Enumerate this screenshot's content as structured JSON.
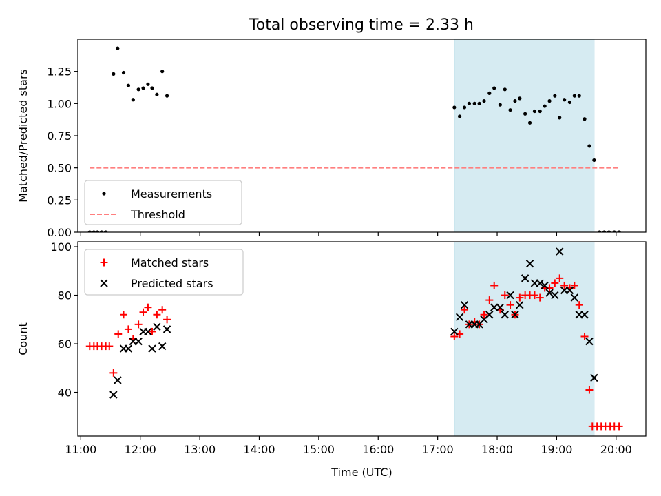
{
  "title": "Total observing time = 2.33 h",
  "chart_data": [
    {
      "type": "scatter",
      "panel": "top",
      "ylabel": "Matched/Predicted stars",
      "ylim": [
        0,
        1.5
      ],
      "yticks": [
        0.0,
        0.25,
        0.5,
        0.75,
        1.0,
        1.25
      ],
      "ytick_labels": [
        "0.00",
        "0.25",
        "0.50",
        "0.75",
        "1.00",
        "1.25"
      ],
      "xlim": [
        10.95,
        20.5
      ],
      "legend": {
        "placement": "lower-left",
        "entries": [
          "Measurements",
          "Threshold"
        ]
      },
      "shaded_span": [
        17.28,
        19.63
      ],
      "series": [
        {
          "name": "Measurements",
          "color": "#000000",
          "x": [
            11.15,
            11.22,
            11.28,
            11.35,
            11.42,
            11.55,
            11.62,
            11.72,
            11.8,
            11.88,
            11.97,
            12.05,
            12.13,
            12.2,
            12.28,
            12.37,
            12.45,
            17.28,
            17.37,
            17.45,
            17.53,
            17.62,
            17.7,
            17.78,
            17.87,
            17.95,
            18.05,
            18.13,
            18.22,
            18.3,
            18.38,
            18.47,
            18.55,
            18.63,
            18.72,
            18.8,
            18.88,
            18.97,
            19.05,
            19.13,
            19.22,
            19.3,
            19.38,
            19.47,
            19.55,
            19.63,
            19.72,
            19.8,
            19.88,
            19.97,
            20.05
          ],
          "y": [
            0,
            0,
            0,
            0,
            0,
            1.23,
            1.43,
            1.24,
            1.14,
            1.03,
            1.11,
            1.12,
            1.15,
            1.12,
            1.07,
            1.25,
            1.06,
            0.97,
            0.9,
            0.97,
            1.0,
            1.0,
            1.0,
            1.02,
            1.08,
            1.12,
            0.99,
            1.11,
            0.95,
            1.02,
            1.04,
            0.92,
            0.85,
            0.94,
            0.94,
            0.98,
            1.02,
            1.06,
            0.89,
            1.03,
            1.01,
            1.06,
            1.06,
            0.88,
            0.67,
            0.56,
            0,
            0,
            0,
            0,
            0
          ]
        },
        {
          "name": "Threshold",
          "color": "#ff7f7f",
          "style": "dashed",
          "x": [
            11.15,
            20.05
          ],
          "y": [
            0.5,
            0.5
          ]
        }
      ]
    },
    {
      "type": "scatter",
      "panel": "bottom",
      "ylabel": "Count",
      "xlabel": "Time (UTC)",
      "ylim": [
        22,
        102
      ],
      "yticks": [
        40,
        60,
        80,
        100
      ],
      "xlim": [
        10.95,
        20.5
      ],
      "xticks": [
        11,
        12,
        13,
        14,
        15,
        16,
        17,
        18,
        19,
        20
      ],
      "xtick_labels": [
        "11:00",
        "12:00",
        "13:00",
        "14:00",
        "15:00",
        "16:00",
        "17:00",
        "18:00",
        "19:00",
        "20:00"
      ],
      "legend": {
        "placement": "upper-left",
        "entries": [
          "Matched stars",
          "Predicted stars"
        ]
      },
      "shaded_span": [
        17.28,
        19.63
      ],
      "series": [
        {
          "name": "Matched stars",
          "color": "#ff0000",
          "marker": "+",
          "x": [
            11.15,
            11.22,
            11.28,
            11.35,
            11.42,
            11.48,
            11.55,
            11.63,
            11.72,
            11.8,
            11.88,
            11.97,
            12.05,
            12.13,
            12.2,
            12.28,
            12.37,
            12.45,
            17.28,
            17.37,
            17.45,
            17.53,
            17.62,
            17.7,
            17.78,
            17.87,
            17.95,
            18.05,
            18.13,
            18.22,
            18.3,
            18.38,
            18.47,
            18.55,
            18.63,
            18.72,
            18.8,
            18.88,
            18.97,
            19.05,
            19.13,
            19.22,
            19.3,
            19.38,
            19.47,
            19.55,
            19.6,
            19.68,
            19.75,
            19.82,
            19.9,
            19.97,
            20.05
          ],
          "y": [
            59,
            59,
            59,
            59,
            59,
            59,
            48,
            64,
            72,
            66,
            62,
            68,
            73,
            75,
            65,
            72,
            74,
            70,
            63,
            64,
            74,
            68,
            69,
            68,
            72,
            78,
            84,
            74,
            80,
            76,
            72,
            79,
            80,
            80,
            80,
            79,
            83,
            83,
            85,
            87,
            84,
            83,
            84,
            76,
            63,
            41,
            26,
            26,
            26,
            26,
            26,
            26,
            26
          ]
        },
        {
          "name": "Predicted stars",
          "color": "#000000",
          "marker": "x",
          "x": [
            11.55,
            11.62,
            11.72,
            11.8,
            11.88,
            11.97,
            12.05,
            12.13,
            12.2,
            12.28,
            12.37,
            12.45,
            17.28,
            17.37,
            17.45,
            17.53,
            17.62,
            17.7,
            17.78,
            17.87,
            17.95,
            18.05,
            18.13,
            18.22,
            18.3,
            18.38,
            18.47,
            18.55,
            18.63,
            18.72,
            18.8,
            18.88,
            18.97,
            19.05,
            19.13,
            19.22,
            19.3,
            19.38,
            19.47,
            19.55,
            19.63
          ],
          "y": [
            39,
            45,
            58,
            58,
            61,
            61,
            65,
            65,
            58,
            67,
            59,
            66,
            65,
            71,
            76,
            68,
            68,
            68,
            70,
            72,
            75,
            75,
            72,
            80,
            72,
            76,
            87,
            93,
            85,
            85,
            84,
            81,
            80,
            98,
            82,
            82,
            79,
            72,
            72,
            61,
            46
          ]
        }
      ]
    }
  ]
}
